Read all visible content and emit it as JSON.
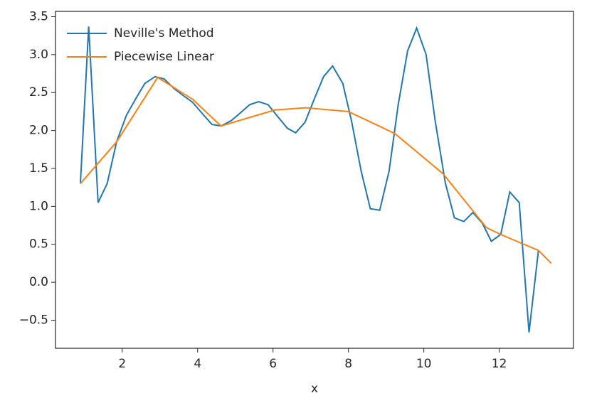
{
  "chart_data": {
    "type": "line",
    "xlabel": "x",
    "xlim": [
      0.23,
      13.97
    ],
    "ylim": [
      -0.87,
      3.57
    ],
    "xticks": [
      2,
      4,
      6,
      8,
      10,
      12
    ],
    "yticks": [
      {
        "value": -0.5,
        "label": "−0.5"
      },
      {
        "value": 0.0,
        "label": "0.0"
      },
      0.5,
      {
        "value": 1.0,
        "label": "1.0"
      },
      1.5,
      {
        "value": 2.0,
        "label": "2.0"
      },
      2.5,
      {
        "value": 3.0,
        "label": "3.0"
      },
      3.5
    ],
    "grid": false,
    "legend": "upper left",
    "series": [
      {
        "name": "Neville's Method",
        "color": "#1f77b4",
        "x": [
          0.89,
          1.11,
          1.36,
          1.6,
          1.85,
          2.11,
          2.36,
          2.6,
          2.87,
          3.11,
          3.38,
          3.62,
          3.87,
          4.13,
          4.38,
          4.62,
          4.89,
          5.13,
          5.38,
          5.62,
          5.87,
          6.13,
          6.38,
          6.6,
          6.85,
          7.09,
          7.34,
          7.58,
          7.85,
          8.08,
          8.34,
          8.58,
          8.83,
          9.08,
          9.32,
          9.57,
          9.81,
          10.06,
          10.3,
          10.57,
          10.81,
          11.06,
          11.3,
          11.55,
          11.79,
          12.04,
          12.28,
          12.53,
          12.79,
          13.04
        ],
        "values": [
          1.3,
          3.37,
          1.05,
          1.3,
          1.85,
          2.2,
          2.42,
          2.62,
          2.71,
          2.68,
          2.55,
          2.46,
          2.37,
          2.22,
          2.08,
          2.06,
          2.13,
          2.23,
          2.34,
          2.38,
          2.34,
          2.18,
          2.03,
          1.97,
          2.11,
          2.41,
          2.71,
          2.85,
          2.62,
          2.13,
          1.46,
          0.97,
          0.95,
          1.47,
          2.34,
          3.05,
          3.35,
          3.0,
          2.13,
          1.31,
          0.85,
          0.8,
          0.92,
          0.78,
          0.54,
          0.63,
          1.19,
          1.05,
          -0.66,
          0.42
        ]
      },
      {
        "name": "Piecewise Linear",
        "color": "#ff7f0e",
        "x": [
          0.89,
          1.85,
          2.94,
          3.87,
          4.62,
          6.04,
          6.87,
          8.0,
          9.23,
          10.51,
          11.66,
          12.04,
          13.04,
          13.38
        ],
        "values": [
          1.3,
          1.85,
          2.7,
          2.41,
          2.06,
          2.27,
          2.3,
          2.25,
          1.96,
          1.43,
          0.72,
          0.63,
          0.42,
          0.25
        ]
      }
    ]
  }
}
